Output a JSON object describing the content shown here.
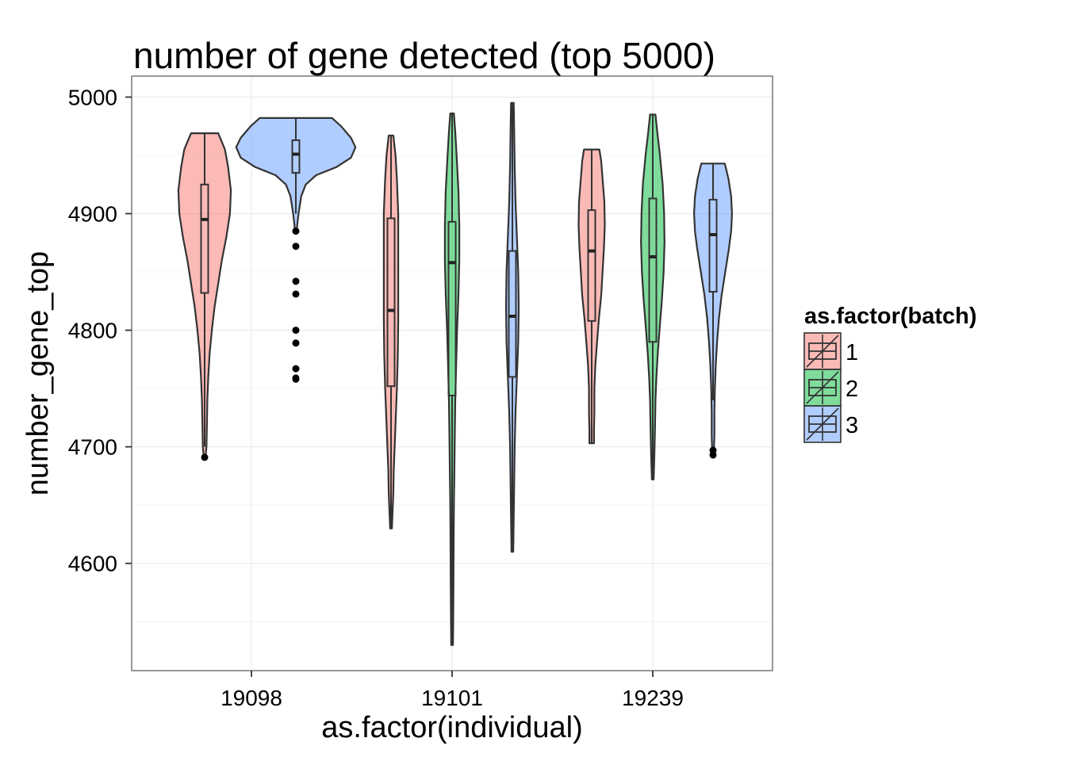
{
  "chart_data": {
    "type": "violin",
    "title": "number of gene detected (top 5000)",
    "xlabel": "as.factor(individual)",
    "ylabel": "number_gene_top",
    "categories": [
      "19098",
      "19101",
      "19239"
    ],
    "ylim": [
      4508,
      5018
    ],
    "yticks": [
      4600,
      4700,
      4800,
      4900,
      5000
    ],
    "grid": true,
    "legend": {
      "title": "as.factor(batch)",
      "position": "right",
      "entries": [
        {
          "label": "1",
          "color": "#F8766D"
        },
        {
          "label": "2",
          "color": "#00BA38"
        },
        {
          "label": "3",
          "color": "#619CFF"
        }
      ]
    },
    "fill_alpha": 0.5,
    "groups": [
      {
        "individual": "19098",
        "batch": "1",
        "slot": 0,
        "box": {
          "q1": 4832,
          "median": 4895,
          "q3": 4925,
          "whisker_low": 4700,
          "whisker_high": 4969
        },
        "outliers": [
          4691
        ],
        "violin": [
          [
            4969,
            0.3
          ],
          [
            4955,
            0.45
          ],
          [
            4940,
            0.52
          ],
          [
            4920,
            0.58
          ],
          [
            4900,
            0.56
          ],
          [
            4880,
            0.48
          ],
          [
            4860,
            0.38
          ],
          [
            4840,
            0.3
          ],
          [
            4820,
            0.22
          ],
          [
            4800,
            0.16
          ],
          [
            4780,
            0.11
          ],
          [
            4760,
            0.08
          ],
          [
            4740,
            0.06
          ],
          [
            4720,
            0.05
          ],
          [
            4700,
            0.04
          ],
          [
            4691,
            0.02
          ]
        ]
      },
      {
        "individual": "19098",
        "batch": "3",
        "slot": 1,
        "box": {
          "q1": 4935,
          "median": 4951,
          "q3": 4963,
          "whisker_low": 4900,
          "whisker_high": 4982
        },
        "outliers": [
          4758,
          4759,
          4767,
          4789,
          4800,
          4831,
          4842,
          4872,
          4885
        ],
        "violin": [
          [
            4982,
            0.8
          ],
          [
            4975,
            1.0
          ],
          [
            4965,
            1.22
          ],
          [
            4957,
            1.32
          ],
          [
            4948,
            1.22
          ],
          [
            4940,
            0.9
          ],
          [
            4933,
            0.45
          ],
          [
            4925,
            0.22
          ],
          [
            4915,
            0.12
          ],
          [
            4900,
            0.06
          ],
          [
            4890,
            0.03
          ],
          [
            4884,
            0.02
          ]
        ]
      },
      {
        "individual": "19101",
        "batch": "1",
        "slot": 2,
        "box": {
          "q1": 4752,
          "median": 4817,
          "q3": 4896,
          "whisker_low": 4630,
          "whisker_high": 4967
        },
        "outliers": [],
        "violin": [
          [
            4967,
            0.05
          ],
          [
            4950,
            0.1
          ],
          [
            4930,
            0.13
          ],
          [
            4900,
            0.16
          ],
          [
            4870,
            0.16
          ],
          [
            4840,
            0.16
          ],
          [
            4810,
            0.16
          ],
          [
            4780,
            0.15
          ],
          [
            4750,
            0.13
          ],
          [
            4720,
            0.1
          ],
          [
            4700,
            0.08
          ],
          [
            4680,
            0.06
          ],
          [
            4660,
            0.05
          ],
          [
            4640,
            0.03
          ],
          [
            4630,
            0.02
          ]
        ]
      },
      {
        "individual": "19101",
        "batch": "2",
        "slot": 3,
        "box": {
          "q1": 4744,
          "median": 4858,
          "q3": 4893,
          "whisker_low": 4530,
          "whisker_high": 4986
        },
        "outliers": [],
        "violin": [
          [
            4986,
            0.04
          ],
          [
            4970,
            0.07
          ],
          [
            4950,
            0.1
          ],
          [
            4920,
            0.14
          ],
          [
            4890,
            0.16
          ],
          [
            4860,
            0.16
          ],
          [
            4830,
            0.14
          ],
          [
            4800,
            0.11
          ],
          [
            4770,
            0.09
          ],
          [
            4740,
            0.07
          ],
          [
            4710,
            0.06
          ],
          [
            4680,
            0.05
          ],
          [
            4650,
            0.04
          ],
          [
            4620,
            0.035
          ],
          [
            4580,
            0.03
          ],
          [
            4550,
            0.025
          ],
          [
            4530,
            0.02
          ]
        ]
      },
      {
        "individual": "19101",
        "batch": "3",
        "slot": 4,
        "box": {
          "q1": 4760,
          "median": 4812,
          "q3": 4868,
          "whisker_low": 4610,
          "whisker_high": 4995
        },
        "outliers": [],
        "violin": [
          [
            4995,
            0.03
          ],
          [
            4970,
            0.04
          ],
          [
            4940,
            0.05
          ],
          [
            4910,
            0.07
          ],
          [
            4880,
            0.1
          ],
          [
            4850,
            0.13
          ],
          [
            4820,
            0.14
          ],
          [
            4790,
            0.13
          ],
          [
            4760,
            0.1
          ],
          [
            4730,
            0.07
          ],
          [
            4700,
            0.05
          ],
          [
            4670,
            0.04
          ],
          [
            4640,
            0.03
          ],
          [
            4610,
            0.02
          ]
        ]
      },
      {
        "individual": "19239",
        "batch": "1",
        "slot": 5,
        "box": {
          "q1": 4808,
          "median": 4868,
          "q3": 4903,
          "whisker_low": 4703,
          "whisker_high": 4955
        },
        "outliers": [],
        "violin": [
          [
            4955,
            0.17
          ],
          [
            4945,
            0.21
          ],
          [
            4930,
            0.24
          ],
          [
            4910,
            0.28
          ],
          [
            4890,
            0.29
          ],
          [
            4870,
            0.27
          ],
          [
            4850,
            0.24
          ],
          [
            4830,
            0.21
          ],
          [
            4810,
            0.16
          ],
          [
            4790,
            0.12
          ],
          [
            4770,
            0.08
          ],
          [
            4750,
            0.06
          ],
          [
            4730,
            0.06
          ],
          [
            4715,
            0.05
          ],
          [
            4703,
            0.05
          ]
        ]
      },
      {
        "individual": "19239",
        "batch": "2",
        "slot": 6,
        "box": {
          "q1": 4790,
          "median": 4863,
          "q3": 4913,
          "whisker_low": 4672,
          "whisker_high": 4985
        },
        "outliers": [],
        "violin": [
          [
            4985,
            0.06
          ],
          [
            4970,
            0.1
          ],
          [
            4950,
            0.16
          ],
          [
            4925,
            0.22
          ],
          [
            4900,
            0.25
          ],
          [
            4875,
            0.26
          ],
          [
            4850,
            0.24
          ],
          [
            4825,
            0.2
          ],
          [
            4800,
            0.15
          ],
          [
            4780,
            0.11
          ],
          [
            4760,
            0.08
          ],
          [
            4740,
            0.06
          ],
          [
            4720,
            0.05
          ],
          [
            4700,
            0.04
          ],
          [
            4685,
            0.03
          ],
          [
            4672,
            0.02
          ]
        ]
      },
      {
        "individual": "19239",
        "batch": "3",
        "slot": 7,
        "box": {
          "q1": 4833,
          "median": 4882,
          "q3": 4912,
          "whisker_low": 4740,
          "whisker_high": 4943
        },
        "outliers": [
          4693,
          4697
        ],
        "violin": [
          [
            4943,
            0.26
          ],
          [
            4930,
            0.34
          ],
          [
            4915,
            0.4
          ],
          [
            4900,
            0.42
          ],
          [
            4885,
            0.4
          ],
          [
            4870,
            0.35
          ],
          [
            4850,
            0.27
          ],
          [
            4830,
            0.19
          ],
          [
            4810,
            0.13
          ],
          [
            4790,
            0.09
          ],
          [
            4770,
            0.06
          ],
          [
            4750,
            0.04
          ],
          [
            4730,
            0.03
          ],
          [
            4710,
            0.03
          ],
          [
            4697,
            0.02
          ]
        ]
      }
    ]
  }
}
